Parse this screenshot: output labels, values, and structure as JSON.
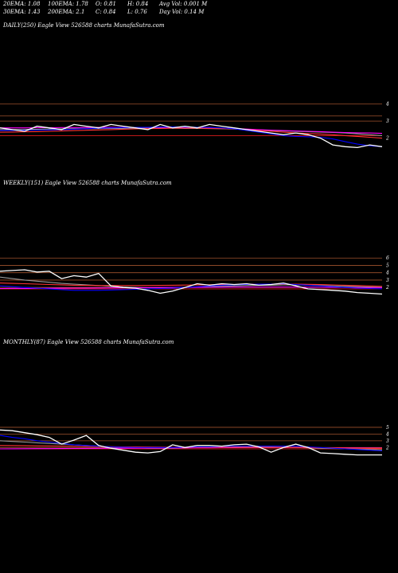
{
  "header": {
    "row1": [
      "20EMA: 1.08",
      "100EMA: 1.78",
      "O: 0.81",
      "H: 0.84",
      "Avg Vol: 0.001 M"
    ],
    "row2": [
      "30EMA: 1.43",
      "200EMA: 2.1",
      "C: 0.84",
      "L: 0.76",
      "Day Vol: 0.14  M"
    ]
  },
  "panels": {
    "daily": {
      "label": "DAILY(250) Eagle  View  526588  charts MunafaSutra.com"
    },
    "weekly": {
      "label": "WEEKLY(151) Eagle  View  526588  charts MunafaSutra.com"
    },
    "monthly": {
      "label": "MONTHLY(87) Eagle  View  526588  charts MunafaSutra.com"
    }
  },
  "chart_data": [
    {
      "type": "line",
      "ylim": [
        1,
        4.5
      ],
      "yticks": [
        4,
        3,
        2
      ],
      "hlines": [
        4,
        3.3,
        3,
        2.15
      ],
      "series": [
        {
          "color": "#ffffff",
          "values": [
            2.6,
            2.5,
            2.4,
            2.7,
            2.6,
            2.5,
            2.8,
            2.7,
            2.6,
            2.8,
            2.7,
            2.6,
            2.5,
            2.8,
            2.6,
            2.7,
            2.6,
            2.8,
            2.7,
            2.6,
            2.5,
            2.4,
            2.3,
            2.2,
            2.3,
            2.2,
            2.0,
            1.6,
            1.5,
            1.45,
            1.6,
            1.5
          ]
        },
        {
          "color": "#0000ff",
          "values": [
            2.45,
            2.45,
            2.46,
            2.47,
            2.48,
            2.5,
            2.52,
            2.55,
            2.58,
            2.6,
            2.62,
            2.63,
            2.64,
            2.65,
            2.66,
            2.65,
            2.64,
            2.63,
            2.6,
            2.55,
            2.45,
            2.35,
            2.25,
            2.15,
            2.1,
            2.08,
            2.05,
            1.95,
            1.8,
            1.65,
            1.55,
            1.5
          ]
        },
        {
          "color": "#ff3333",
          "values": [
            2.35,
            2.36,
            2.37,
            2.38,
            2.4,
            2.42,
            2.44,
            2.46,
            2.48,
            2.5,
            2.52,
            2.54,
            2.56,
            2.57,
            2.58,
            2.58,
            2.58,
            2.57,
            2.56,
            2.54,
            2.5,
            2.45,
            2.4,
            2.35,
            2.3,
            2.27,
            2.24,
            2.2,
            2.15,
            2.1,
            2.05,
            2.0
          ]
        },
        {
          "color": "#ff00ff",
          "values": [
            2.6,
            2.6,
            2.6,
            2.61,
            2.61,
            2.62,
            2.62,
            2.62,
            2.63,
            2.63,
            2.63,
            2.63,
            2.63,
            2.63,
            2.62,
            2.62,
            2.61,
            2.6,
            2.58,
            2.56,
            2.53,
            2.5,
            2.47,
            2.44,
            2.42,
            2.4,
            2.38,
            2.35,
            2.33,
            2.31,
            2.3,
            2.28
          ]
        },
        {
          "color": "#999999",
          "values": [
            2.5,
            2.5,
            2.51,
            2.52,
            2.53,
            2.54,
            2.55,
            2.55,
            2.56,
            2.57,
            2.57,
            2.58,
            2.58,
            2.58,
            2.58,
            2.57,
            2.57,
            2.56,
            2.55,
            2.53,
            2.5,
            2.47,
            2.44,
            2.42,
            2.4,
            2.38,
            2.36,
            2.33,
            2.3,
            2.25,
            2.2,
            2.15
          ]
        }
      ]
    },
    {
      "type": "line",
      "ylim": [
        0.5,
        7
      ],
      "yticks": [
        6,
        5,
        4,
        3,
        2
      ],
      "hlines": [
        6,
        5,
        4,
        3,
        2,
        1.8
      ],
      "series": [
        {
          "color": "#ffffff",
          "values": [
            4.2,
            4.3,
            4.4,
            4.1,
            4.2,
            3.2,
            3.6,
            3.4,
            3.9,
            2.2,
            2.0,
            1.9,
            1.6,
            1.2,
            1.5,
            2.0,
            2.5,
            2.3,
            2.5,
            2.4,
            2.5,
            2.3,
            2.4,
            2.6,
            2.2,
            1.8,
            1.7,
            1.6,
            1.5,
            1.3,
            1.2,
            1.1
          ]
        },
        {
          "color": "#0000ff",
          "values": [
            2.2,
            2.1,
            2.0,
            1.9,
            1.8,
            1.7,
            1.6,
            1.6,
            1.6,
            1.65,
            1.7,
            1.75,
            1.8,
            1.85,
            1.9,
            2.0,
            2.1,
            2.2,
            2.3,
            2.35,
            2.4,
            2.45,
            2.45,
            2.5,
            2.4,
            2.3,
            2.2,
            2.1,
            2.0,
            1.9,
            1.85,
            1.8
          ]
        },
        {
          "color": "#ff3333",
          "values": [
            2.6,
            2.55,
            2.5,
            2.45,
            2.4,
            2.35,
            2.3,
            2.28,
            2.26,
            2.25,
            2.25,
            2.26,
            2.27,
            2.28,
            2.3,
            2.32,
            2.34,
            2.36,
            2.38,
            2.4,
            2.42,
            2.44,
            2.45,
            2.46,
            2.45,
            2.42,
            2.38,
            2.34,
            2.3,
            2.25,
            2.2,
            2.15
          ]
        },
        {
          "color": "#ff00ff",
          "values": [
            1.85,
            1.86,
            1.87,
            1.88,
            1.89,
            1.9,
            1.91,
            1.92,
            1.93,
            1.94,
            1.95,
            1.96,
            1.97,
            1.98,
            1.99,
            2.0,
            2.01,
            2.02,
            2.03,
            2.04,
            2.05,
            2.05,
            2.05,
            2.05,
            2.04,
            2.03,
            2.02,
            2.01,
            2.0,
            1.98,
            1.96,
            1.95
          ]
        },
        {
          "color": "#999999",
          "values": [
            3.4,
            3.2,
            3.0,
            2.85,
            2.7,
            2.55,
            2.45,
            2.35,
            2.25,
            2.15,
            2.05,
            2.0,
            1.95,
            1.95,
            1.95,
            2.0,
            2.05,
            2.1,
            2.15,
            2.2,
            2.25,
            2.3,
            2.3,
            2.35,
            2.35,
            2.3,
            2.25,
            2.2,
            2.15,
            2.1,
            2.05,
            2.0
          ]
        }
      ]
    },
    {
      "type": "line",
      "ylim": [
        0.5,
        7
      ],
      "yticks": [
        5,
        4,
        3,
        2
      ],
      "hlines": [
        5,
        4,
        3,
        2,
        1.8
      ],
      "series": [
        {
          "color": "#ffffff",
          "values": [
            4.6,
            4.5,
            4.2,
            3.9,
            3.5,
            2.5,
            3.1,
            3.8,
            2.3,
            1.9,
            1.6,
            1.3,
            1.2,
            1.4,
            2.4,
            2.0,
            2.3,
            2.3,
            2.2,
            2.4,
            2.5,
            2.1,
            1.3,
            2.0,
            2.5,
            2.0,
            1.2,
            1.1,
            1.0,
            0.9,
            0.9,
            0.9
          ]
        },
        {
          "color": "#0000ff",
          "values": [
            3.8,
            3.5,
            3.3,
            3.0,
            2.8,
            2.6,
            2.4,
            2.3,
            2.2,
            2.1,
            2.05,
            2.0,
            2.0,
            2.0,
            2.0,
            2.05,
            2.1,
            2.1,
            2.15,
            2.2,
            2.2,
            2.2,
            2.2,
            2.2,
            2.2,
            2.1,
            2.0,
            1.9,
            1.8,
            1.7,
            1.6,
            1.5
          ]
        },
        {
          "color": "#ff3333",
          "values": [
            2.3,
            2.28,
            2.26,
            2.24,
            2.22,
            2.2,
            2.18,
            2.16,
            2.14,
            2.12,
            2.1,
            2.08,
            2.07,
            2.06,
            2.05,
            2.05,
            2.05,
            2.05,
            2.05,
            2.05,
            2.05,
            2.04,
            2.03,
            2.02,
            2.01,
            2.0,
            1.98,
            1.96,
            1.94,
            1.92,
            1.9,
            1.88
          ]
        },
        {
          "color": "#ff00ff",
          "values": [
            1.8,
            1.81,
            1.82,
            1.83,
            1.84,
            1.85,
            1.86,
            1.87,
            1.88,
            1.89,
            1.9,
            1.91,
            1.92,
            1.93,
            1.94,
            1.95,
            1.96,
            1.97,
            1.98,
            1.99,
            2.0,
            2.0,
            2.0,
            2.0,
            2.0,
            1.99,
            1.98,
            1.97,
            1.96,
            1.95,
            1.94,
            1.93
          ]
        },
        {
          "color": "#999999",
          "values": [
            3.0,
            2.9,
            2.8,
            2.7,
            2.6,
            2.5,
            2.4,
            2.3,
            2.2,
            2.1,
            2.0,
            1.95,
            1.9,
            1.9,
            1.9,
            1.95,
            2.0,
            2.05,
            2.1,
            2.1,
            2.1,
            2.1,
            2.1,
            2.05,
            2.0,
            1.95,
            1.9,
            1.85,
            1.8,
            1.75,
            1.7,
            1.65
          ]
        }
      ]
    }
  ]
}
